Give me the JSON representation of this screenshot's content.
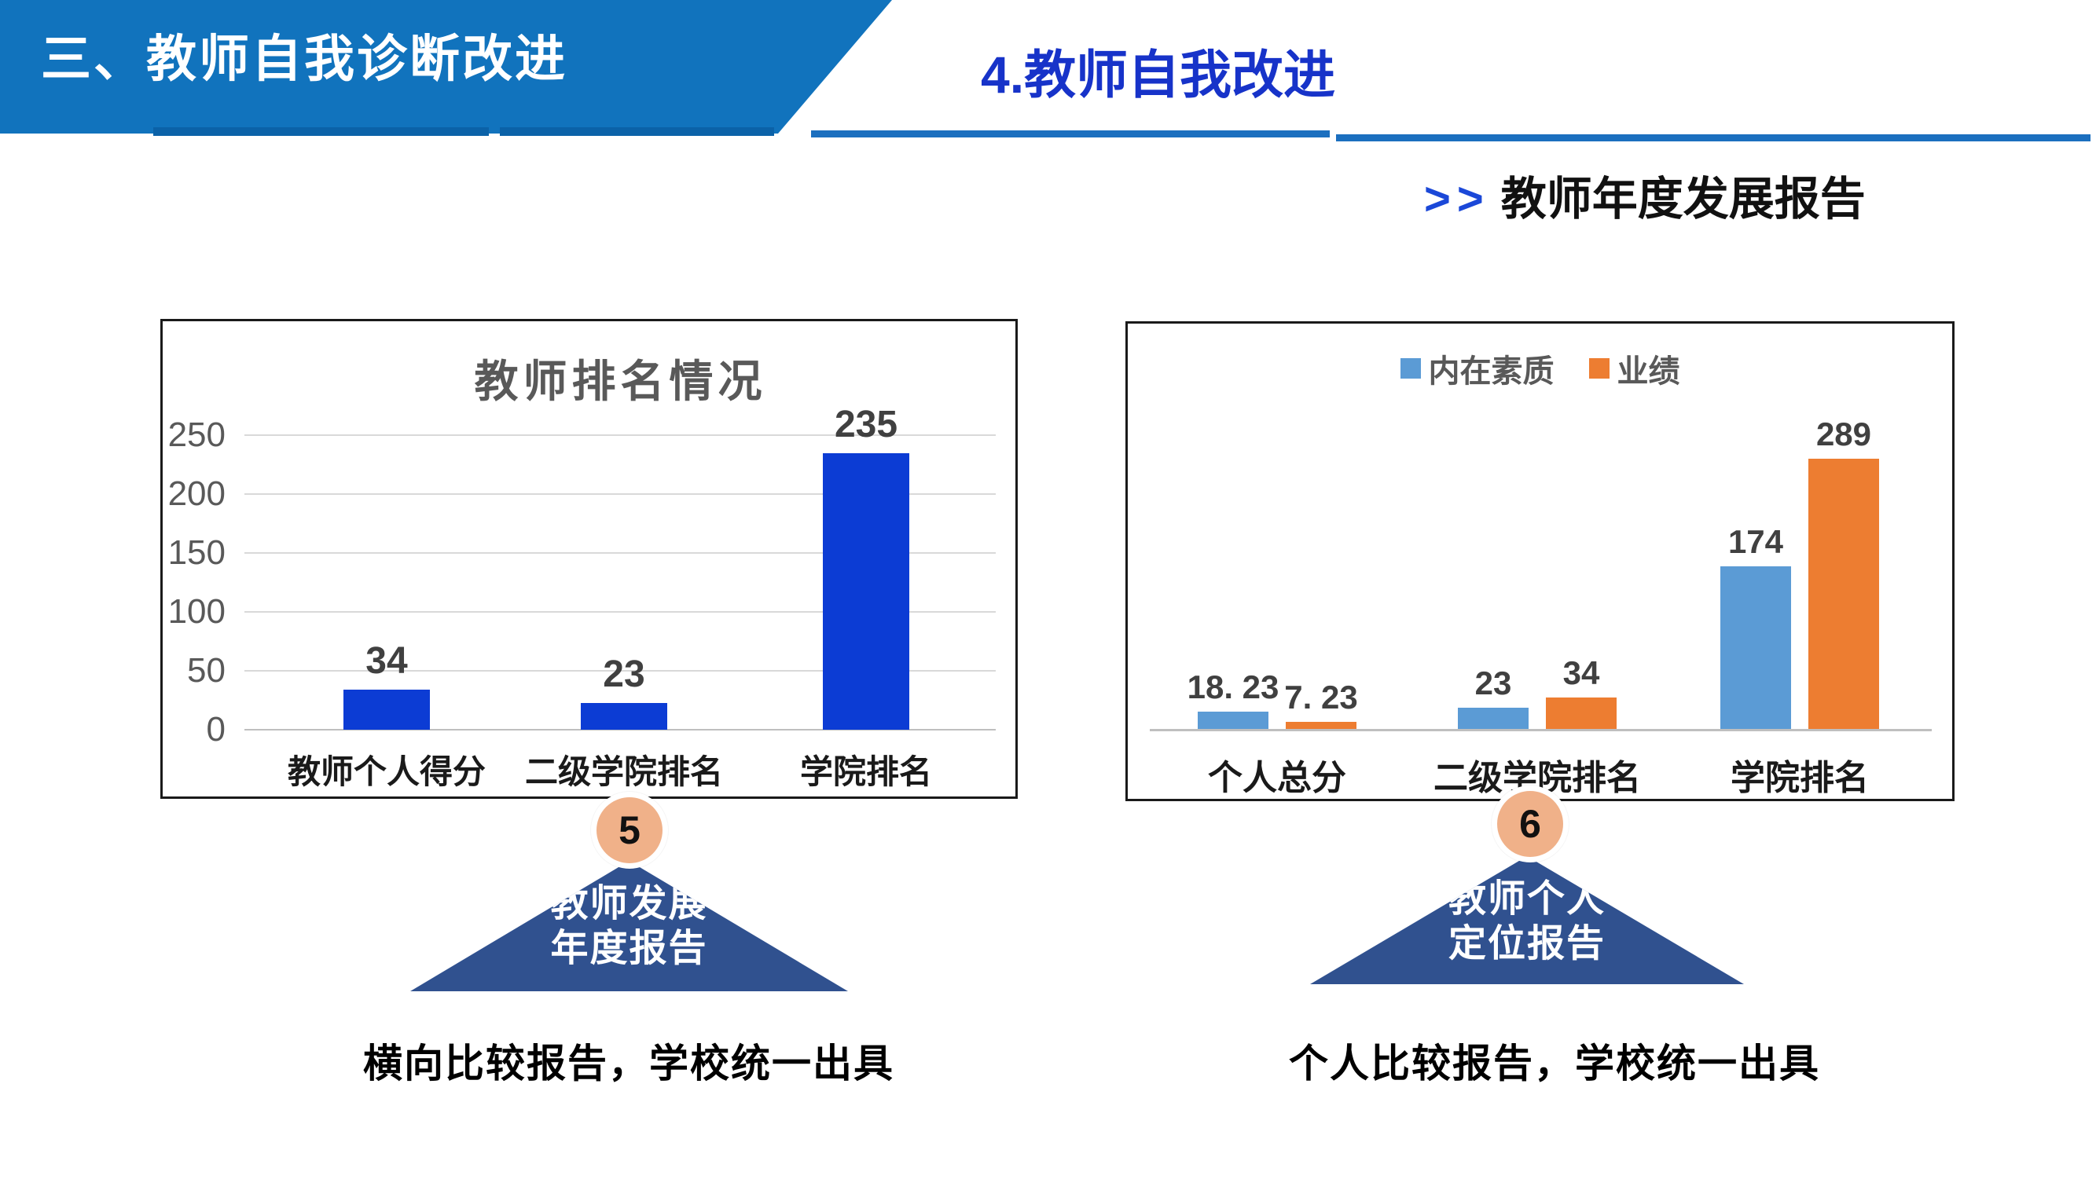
{
  "header": {
    "section_title": "三、教师自我诊断改进",
    "subtitle": "4.教师自我改进",
    "arrow_prefix": ">>",
    "report_title": "教师年度发展报告"
  },
  "colors": {
    "banner_blue": "#1173BD",
    "banner_strip_blue": "#0B62A8",
    "rule_blue": "#1B6FBF",
    "subtitle_blue": "#1733C9",
    "chevron_blue": "#1B48D8",
    "left_bar_blue": "#0C3CD4",
    "series_blue": "#5B9BD5",
    "series_orange": "#ED7D31",
    "triangle_navy": "#30518F",
    "circle_peach": "#F0B189",
    "gridline_gray": "#D9D9D9",
    "axis_gray": "#BFBFBF",
    "label_gray": "#595959",
    "value_gray": "#404040"
  },
  "chart_data": [
    {
      "type": "bar",
      "title": "教师排名情况",
      "categories": [
        "教师个人得分",
        "二级学院排名",
        "学院排名"
      ],
      "values": [
        34,
        23,
        235
      ],
      "data_labels": [
        "34",
        "23",
        "235"
      ],
      "xlabel": "",
      "ylabel": "",
      "yticks": [
        0,
        50,
        100,
        150,
        200,
        250
      ],
      "ytick_labels": [
        "0",
        "50",
        "100",
        "150",
        "200",
        "250"
      ],
      "ylim": [
        0,
        250
      ],
      "grid": true,
      "legend": false,
      "bar_color": "#0C3CD4"
    },
    {
      "type": "bar",
      "title": "",
      "categories": [
        "个人总分",
        "二级学院排名",
        "学院排名"
      ],
      "series": [
        {
          "name": "内在素质",
          "color": "#5B9BD5",
          "values": [
            18.23,
            23,
            174
          ],
          "data_labels": [
            "18. 23",
            "23",
            "174"
          ]
        },
        {
          "name": "业绩",
          "color": "#ED7D31",
          "values": [
            7.23,
            34,
            289
          ],
          "data_labels": [
            "7. 23",
            "34",
            "289"
          ]
        }
      ],
      "ylim": [
        0,
        300
      ],
      "grid": false,
      "legend": true,
      "legend_position": "top"
    }
  ],
  "callouts": [
    {
      "number": "5",
      "line1": "教师发展",
      "line2": "年度报告",
      "caption": "横向比较报告，学校统一出具"
    },
    {
      "number": "6",
      "line1": "教师个人",
      "line2": "定位报告",
      "caption": "个人比较报告，学校统一出具"
    }
  ]
}
